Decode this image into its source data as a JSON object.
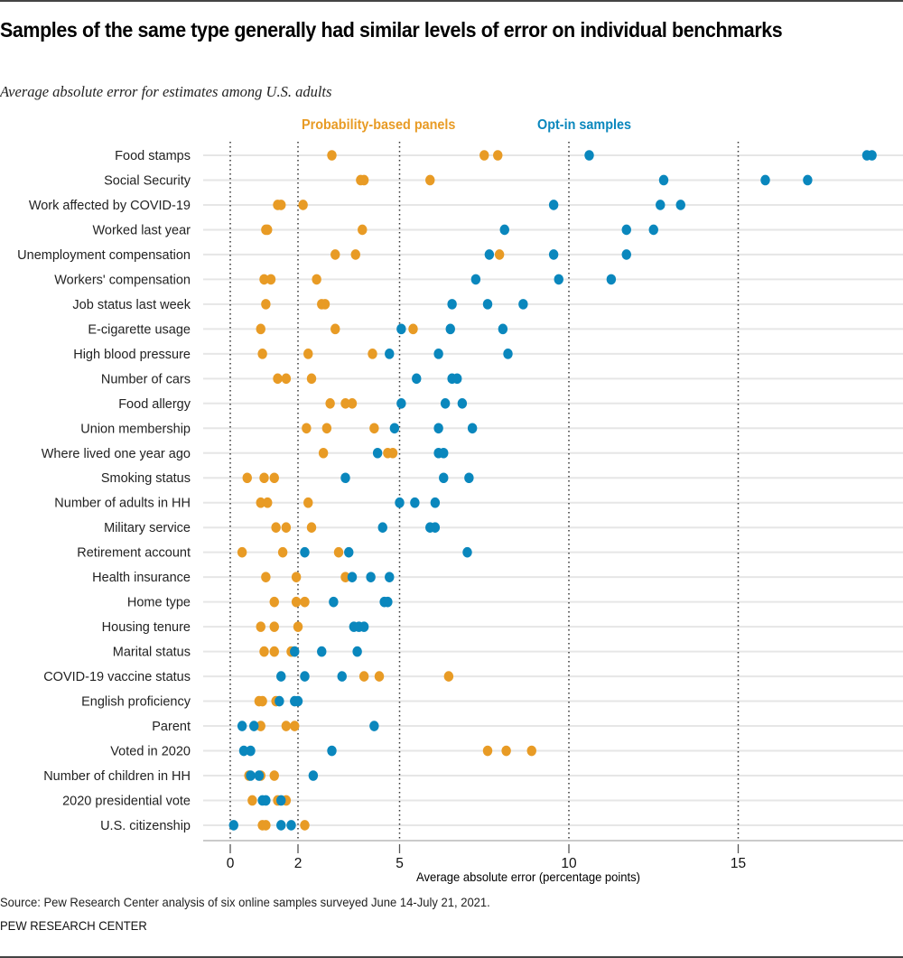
{
  "header": {
    "title": "Samples of the same type generally had similar levels of error on individual benchmarks",
    "subtitle": "Average absolute error for estimates among U.S. adults"
  },
  "footer": {
    "source": "Source: Pew Research Center analysis of six online samples surveyed June 14-July 21, 2021.",
    "brand": "PEW RESEARCH CENTER"
  },
  "colors": {
    "probability": "#E89B25",
    "optin": "#0A87BD"
  },
  "chart_data": {
    "type": "scatter",
    "subtype": "dot-plot",
    "title": "Samples of the same type generally had similar levels of error on individual benchmarks",
    "subtitle": "Average absolute error for estimates among U.S. adults",
    "xlabel": "Average absolute error (percentage points)",
    "ylabel": "",
    "xlim": [
      0,
      19.5
    ],
    "x_ticks": [
      0,
      2,
      5,
      10,
      15
    ],
    "x_tick_labels": [
      "0",
      "2",
      "5",
      "10",
      "15"
    ],
    "gridlines": "dotted vertical at ticks",
    "legend": {
      "placement": "top-center",
      "entries": [
        "Probability-based panels",
        "Opt-in samples"
      ]
    },
    "categories": [
      "Food stamps",
      "Social Security",
      "Work affected by COVID-19",
      "Worked last year",
      "Unemployment compensation",
      "Workers' compensation",
      "Job status last week",
      "E-cigarette usage",
      "High blood pressure",
      "Number of cars",
      "Food allergy",
      "Union membership",
      "Where lived one year ago",
      "Smoking status",
      "Number of adults in HH",
      "Military service",
      "Retirement account",
      "Health insurance",
      "Home type",
      "Housing tenure",
      "Marital status",
      "COVID-19 vaccine status",
      "English proficiency",
      "Parent",
      "Voted in 2020",
      "Number of children in HH",
      "2020 presidential vote",
      "U.S. citizenship"
    ],
    "series": [
      {
        "name": "Probability-based panels",
        "color": "#E89B25",
        "values": [
          [
            3.0,
            7.5,
            7.9
          ],
          [
            3.85,
            3.95,
            5.9
          ],
          [
            1.4,
            1.5,
            2.15
          ],
          [
            1.05,
            1.1,
            3.9
          ],
          [
            3.1,
            3.7,
            7.95
          ],
          [
            1.0,
            1.2,
            2.55
          ],
          [
            1.05,
            2.7,
            2.8
          ],
          [
            0.9,
            3.1,
            5.4
          ],
          [
            0.95,
            2.3,
            4.2
          ],
          [
            1.4,
            1.65,
            2.4
          ],
          [
            2.95,
            3.4,
            3.6
          ],
          [
            2.25,
            2.85,
            4.25
          ],
          [
            2.75,
            4.65,
            4.8
          ],
          [
            0.5,
            1.0,
            1.3
          ],
          [
            0.9,
            1.1,
            2.3
          ],
          [
            1.35,
            1.65,
            2.4
          ],
          [
            0.35,
            1.55,
            3.2
          ],
          [
            1.05,
            1.95,
            3.4
          ],
          [
            1.3,
            1.95,
            2.2
          ],
          [
            0.9,
            1.3,
            2.0
          ],
          [
            1.0,
            1.3,
            1.8
          ],
          [
            3.95,
            4.4,
            6.45
          ],
          [
            0.85,
            0.95,
            1.35
          ],
          [
            0.9,
            1.65,
            1.9
          ],
          [
            7.6,
            8.15,
            8.9
          ],
          [
            0.55,
            0.9,
            1.3
          ],
          [
            0.65,
            1.4,
            1.65
          ],
          [
            0.95,
            1.05,
            2.2
          ]
        ]
      },
      {
        "name": "Opt-in samples",
        "color": "#0A87BD",
        "values": [
          [
            10.6,
            18.8,
            18.95
          ],
          [
            12.8,
            15.8,
            17.05
          ],
          [
            9.55,
            12.7,
            13.3
          ],
          [
            8.1,
            11.7,
            12.5
          ],
          [
            7.65,
            9.55,
            11.7
          ],
          [
            7.25,
            9.7,
            11.25
          ],
          [
            6.55,
            7.6,
            8.65
          ],
          [
            5.05,
            6.5,
            8.05
          ],
          [
            4.7,
            6.15,
            8.2
          ],
          [
            5.5,
            6.55,
            6.7
          ],
          [
            5.05,
            6.35,
            6.85
          ],
          [
            4.85,
            6.15,
            7.15
          ],
          [
            4.35,
            6.15,
            6.3
          ],
          [
            3.4,
            6.3,
            7.05
          ],
          [
            5.0,
            5.45,
            6.05
          ],
          [
            4.5,
            5.9,
            6.05
          ],
          [
            2.2,
            3.5,
            7.0
          ],
          [
            3.6,
            4.15,
            4.7
          ],
          [
            3.05,
            4.55,
            4.65
          ],
          [
            3.65,
            3.8,
            3.95
          ],
          [
            1.9,
            2.7,
            3.75
          ],
          [
            1.5,
            2.2,
            3.3
          ],
          [
            1.45,
            1.9,
            2.0
          ],
          [
            0.35,
            0.7,
            4.25
          ],
          [
            0.4,
            0.6,
            3.0
          ],
          [
            0.6,
            0.85,
            2.45
          ],
          [
            0.95,
            1.05,
            1.5
          ],
          [
            0.1,
            1.5,
            1.8
          ]
        ]
      }
    ]
  }
}
